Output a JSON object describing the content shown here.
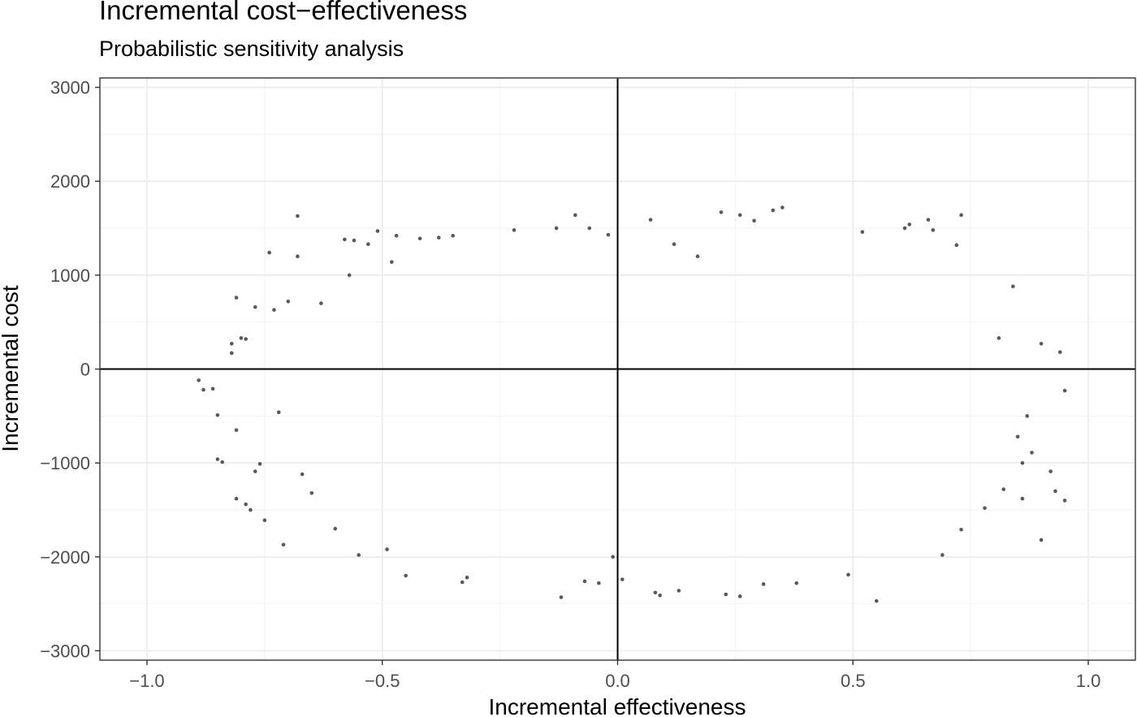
{
  "chart_data": {
    "type": "scatter",
    "title": "Incremental cost−effectiveness",
    "subtitle": "Probabilistic sensitivity analysis",
    "xlabel": "Incremental effectiveness",
    "ylabel": "Incremental cost",
    "xlim": [
      -1.1,
      1.1
    ],
    "ylim": [
      -3100,
      3100
    ],
    "x_ticks": [
      -1.0,
      -0.5,
      0.0,
      0.5,
      1.0
    ],
    "x_tick_labels": [
      "−1.0",
      "−0.5",
      "0.0",
      "0.5",
      "1.0"
    ],
    "y_ticks": [
      3000,
      2000,
      1000,
      0,
      -1000,
      -2000,
      -3000
    ],
    "y_tick_labels": [
      "3000",
      "2000",
      "1000",
      "0",
      "−1000",
      "−2000",
      "−3000"
    ],
    "grid": true,
    "reference_lines": {
      "x": 0,
      "y": 0
    },
    "point_color": "#595959",
    "series": [
      {
        "points": [
          [
            -0.89,
            -120
          ],
          [
            -0.88,
            -220
          ],
          [
            -0.86,
            -210
          ],
          [
            -0.85,
            -490
          ],
          [
            -0.85,
            -960
          ],
          [
            -0.84,
            -990
          ],
          [
            -0.82,
            170
          ],
          [
            -0.82,
            270
          ],
          [
            -0.81,
            760
          ],
          [
            -0.81,
            -650
          ],
          [
            -0.81,
            -1380
          ],
          [
            -0.8,
            330
          ],
          [
            -0.79,
            320
          ],
          [
            -0.79,
            -1440
          ],
          [
            -0.78,
            -1500
          ],
          [
            -0.77,
            660
          ],
          [
            -0.77,
            -1090
          ],
          [
            -0.76,
            -1010
          ],
          [
            -0.75,
            -1610
          ],
          [
            -0.74,
            1240
          ],
          [
            -0.73,
            630
          ],
          [
            -0.72,
            -460
          ],
          [
            -0.71,
            -1870
          ],
          [
            -0.7,
            720
          ],
          [
            -0.68,
            1630
          ],
          [
            -0.68,
            1200
          ],
          [
            -0.67,
            -1120
          ],
          [
            -0.65,
            -1320
          ],
          [
            -0.63,
            700
          ],
          [
            -0.6,
            -1700
          ],
          [
            -0.58,
            1380
          ],
          [
            -0.57,
            1000
          ],
          [
            -0.56,
            1370
          ],
          [
            -0.55,
            -1980
          ],
          [
            -0.53,
            1330
          ],
          [
            -0.51,
            1470
          ],
          [
            -0.49,
            -1920
          ],
          [
            -0.48,
            1140
          ],
          [
            -0.47,
            1420
          ],
          [
            -0.45,
            -2200
          ],
          [
            -0.42,
            1390
          ],
          [
            -0.38,
            1400
          ],
          [
            -0.35,
            1420
          ],
          [
            -0.33,
            -2270
          ],
          [
            -0.32,
            -2220
          ],
          [
            -0.22,
            1480
          ],
          [
            -0.13,
            1500
          ],
          [
            -0.12,
            -2430
          ],
          [
            -0.09,
            1640
          ],
          [
            -0.07,
            -2260
          ],
          [
            -0.06,
            1500
          ],
          [
            -0.04,
            -2280
          ],
          [
            -0.02,
            1430
          ],
          [
            -0.01,
            -2000
          ],
          [
            0.01,
            -2240
          ],
          [
            0.07,
            1590
          ],
          [
            0.08,
            -2380
          ],
          [
            0.09,
            -2410
          ],
          [
            0.12,
            1330
          ],
          [
            0.13,
            -2360
          ],
          [
            0.17,
            1200
          ],
          [
            0.22,
            1670
          ],
          [
            0.23,
            -2400
          ],
          [
            0.26,
            1640
          ],
          [
            0.26,
            -2420
          ],
          [
            0.29,
            1580
          ],
          [
            0.31,
            -2290
          ],
          [
            0.33,
            1690
          ],
          [
            0.35,
            1720
          ],
          [
            0.38,
            -2280
          ],
          [
            0.49,
            -2190
          ],
          [
            0.52,
            1460
          ],
          [
            0.55,
            -2470
          ],
          [
            0.61,
            1500
          ],
          [
            0.62,
            1540
          ],
          [
            0.66,
            1590
          ],
          [
            0.67,
            1480
          ],
          [
            0.69,
            -1980
          ],
          [
            0.72,
            1320
          ],
          [
            0.73,
            1640
          ],
          [
            0.73,
            -1710
          ],
          [
            0.78,
            -1480
          ],
          [
            0.81,
            330
          ],
          [
            0.82,
            -1280
          ],
          [
            0.84,
            880
          ],
          [
            0.85,
            -720
          ],
          [
            0.86,
            -1380
          ],
          [
            0.87,
            -500
          ],
          [
            0.88,
            -890
          ],
          [
            0.9,
            -1820
          ],
          [
            0.92,
            -1090
          ],
          [
            0.93,
            -1300
          ],
          [
            0.94,
            180
          ],
          [
            0.95,
            -1400
          ],
          [
            0.95,
            -230
          ],
          [
            0.9,
            270
          ],
          [
            0.86,
            -1000
          ]
        ]
      }
    ]
  }
}
